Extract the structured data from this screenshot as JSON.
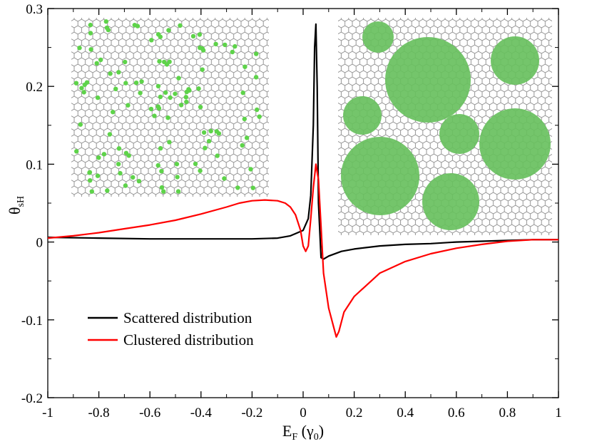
{
  "chart_data": {
    "type": "line",
    "title": "",
    "xlabel": "E",
    "xlabel_sub": "F",
    "xlabel_unit_open": " (γ",
    "xlabel_unit_sub": "0",
    "xlabel_unit_close": ")",
    "ylabel": "θ",
    "ylabel_sub": "sH",
    "xlim": [
      -1,
      1
    ],
    "ylim": [
      -0.2,
      0.3
    ],
    "xticks": [
      -1,
      -0.8,
      -0.6,
      -0.4,
      -0.2,
      0,
      0.2,
      0.4,
      0.6,
      0.8,
      1
    ],
    "xtick_labels": [
      "-1",
      "-0.8",
      "-0.6",
      "-0.4",
      "-0.2",
      "0",
      "0.2",
      "0.4",
      "0.6",
      "0.8",
      "1"
    ],
    "yticks": [
      -0.2,
      -0.1,
      0,
      0.1,
      0.2,
      0.3
    ],
    "ytick_labels": [
      "-0.2",
      "-0.1",
      "0",
      "0.1",
      "0.2",
      "0.3"
    ],
    "legend_position": "bottom-left",
    "grid": false,
    "series": [
      {
        "name": "Scattered distribution",
        "color": "#000000",
        "x": [
          -1,
          -0.8,
          -0.6,
          -0.4,
          -0.2,
          -0.1,
          -0.05,
          0,
          0.02,
          0.03,
          0.04,
          0.045,
          0.05,
          0.055,
          0.06,
          0.07,
          0.08,
          0.1,
          0.15,
          0.2,
          0.3,
          0.4,
          0.5,
          0.6,
          0.7,
          0.8,
          0.9,
          1
        ],
        "y": [
          0.006,
          0.005,
          0.004,
          0.004,
          0.004,
          0.005,
          0.008,
          0.015,
          0.03,
          0.06,
          0.15,
          0.25,
          0.28,
          0.2,
          0.05,
          -0.02,
          -0.022,
          -0.018,
          -0.012,
          -0.009,
          -0.005,
          -0.003,
          -0.002,
          0,
          0.001,
          0.002,
          0.003,
          0.003
        ]
      },
      {
        "name": "Clustered distribution",
        "color": "#ff0000",
        "x": [
          -1,
          -0.9,
          -0.8,
          -0.7,
          -0.6,
          -0.5,
          -0.4,
          -0.3,
          -0.25,
          -0.2,
          -0.15,
          -0.1,
          -0.07,
          -0.05,
          -0.03,
          -0.01,
          0,
          0.01,
          0.02,
          0.03,
          0.04,
          0.05,
          0.06,
          0.07,
          0.08,
          0.1,
          0.12,
          0.13,
          0.14,
          0.16,
          0.2,
          0.3,
          0.4,
          0.5,
          0.6,
          0.7,
          0.8,
          0.9,
          1
        ],
        "y": [
          0.005,
          0.008,
          0.012,
          0.017,
          0.022,
          0.028,
          0.036,
          0.045,
          0.05,
          0.053,
          0.054,
          0.053,
          0.05,
          0.045,
          0.035,
          0.015,
          -0.005,
          -0.012,
          -0.005,
          0.03,
          0.07,
          0.1,
          0.08,
          0.02,
          -0.04,
          -0.085,
          -0.11,
          -0.122,
          -0.115,
          -0.09,
          -0.07,
          -0.04,
          -0.025,
          -0.015,
          -0.008,
          -0.003,
          0.001,
          0.003,
          0.003
        ]
      }
    ],
    "insets": [
      {
        "name": "scattered-lattice-inset",
        "type": "lattice",
        "dot_color": "#5ed34a",
        "description_kind": "scattered"
      },
      {
        "name": "clustered-lattice-inset",
        "type": "lattice",
        "dot_color": "#5ed34a",
        "description_kind": "clustered"
      }
    ]
  }
}
